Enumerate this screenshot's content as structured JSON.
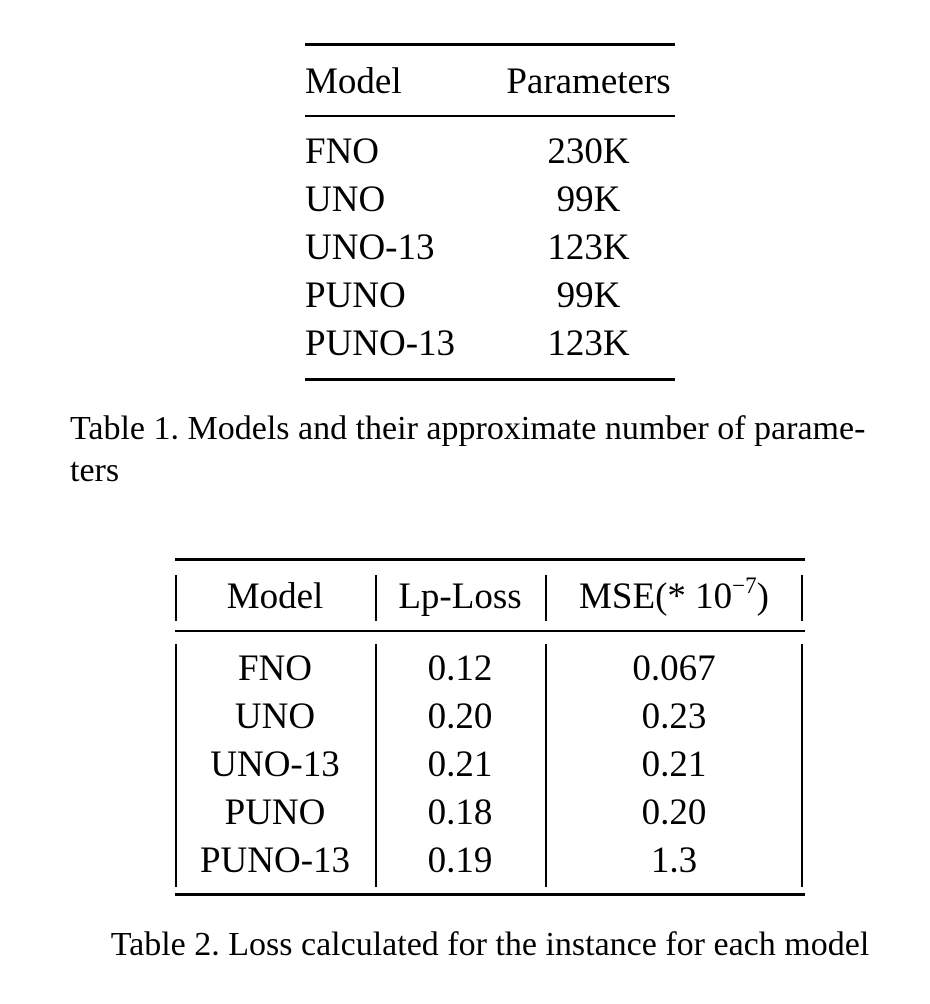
{
  "table1": {
    "headers": {
      "model": "Model",
      "parameters": "Parameters"
    },
    "rows": [
      {
        "model": "FNO",
        "parameters": "230K"
      },
      {
        "model": "UNO",
        "parameters": "99K"
      },
      {
        "model": "UNO-13",
        "parameters": "123K"
      },
      {
        "model": "PUNO",
        "parameters": "99K"
      },
      {
        "model": "PUNO-13",
        "parameters": "123K"
      }
    ],
    "caption": "Table 1. Models and their approximate number of parame- ters"
  },
  "table2": {
    "headers": {
      "model": "Model",
      "lp_loss": "Lp-Loss",
      "mse_prefix": "MSE(* 10",
      "mse_exponent": "−7",
      "mse_suffix": ")"
    },
    "rows": [
      {
        "model": "FNO",
        "lp_loss": "0.12",
        "mse": "0.067"
      },
      {
        "model": "UNO",
        "lp_loss": "0.20",
        "mse": "0.23"
      },
      {
        "model": "UNO-13",
        "lp_loss": "0.21",
        "mse": "0.21"
      },
      {
        "model": "PUNO",
        "lp_loss": "0.18",
        "mse": "0.20"
      },
      {
        "model": "PUNO-13",
        "lp_loss": "0.19",
        "mse": "1.3"
      }
    ],
    "caption": "Table 2. Loss calculated for the instance for each model"
  }
}
